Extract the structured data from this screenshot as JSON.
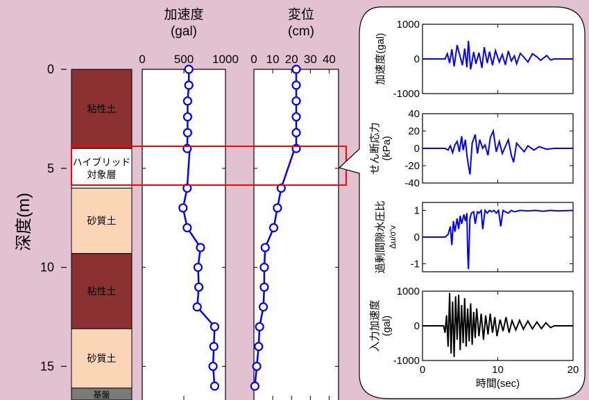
{
  "colors": {
    "background": "#e2c1d0",
    "panel": "#ffffff",
    "clay": "#8b3131",
    "sand": "#fbd6b6",
    "bedrock": "#7a7a7a",
    "series_blue": "#0000ff",
    "series_black": "#000000",
    "highlight": "#ff0000"
  },
  "depth_axis": {
    "label": "深度(m)",
    "ticks": [
      "0",
      "5",
      "10",
      "15"
    ],
    "tick_values": [
      0,
      5,
      10,
      15
    ],
    "range": [
      0,
      16.7
    ]
  },
  "soil_column": {
    "layers": [
      {
        "label": "粘性土",
        "top": 0,
        "bottom": 4.0,
        "type": "clay"
      },
      {
        "label": "ハイブリッド\n対象層",
        "top": 4.0,
        "bottom": 6.0,
        "type": "target"
      },
      {
        "label": "砂質土",
        "top": 6.0,
        "bottom": 9.3,
        "type": "sand"
      },
      {
        "label": "粘性土",
        "top": 9.3,
        "bottom": 13.1,
        "type": "clay"
      },
      {
        "label": "砂質土",
        "top": 13.1,
        "bottom": 16.1,
        "type": "sand"
      },
      {
        "label": "基盤",
        "top": 16.1,
        "bottom": 16.7,
        "type": "bedrock"
      }
    ]
  },
  "chart_data": [
    {
      "type": "line",
      "title": "加速度\n(gal)",
      "x_ticks": [
        "0",
        "500",
        "1000"
      ],
      "xlim": [
        0,
        1000
      ],
      "series": [
        {
          "x": [
            560,
            560,
            545,
            545,
            545,
            540,
            570,
            540,
            490,
            540,
            700,
            670,
            680,
            660,
            870,
            860,
            850,
            870
          ],
          "y": [
            0,
            0.8,
            1.6,
            2.4,
            3.2,
            4.0,
            4.05,
            6.0,
            7.0,
            8.0,
            9.0,
            10.0,
            11.0,
            12.0,
            13.0,
            14.0,
            15.0,
            16.0
          ]
        }
      ]
    },
    {
      "type": "line",
      "title": "変位\n(cm)",
      "x_ticks": [
        "0",
        "10",
        "20",
        "30",
        "40"
      ],
      "xlim": [
        0,
        45
      ],
      "series": [
        {
          "x": [
            22.5,
            22.5,
            22.5,
            22.5,
            22.5,
            22.5,
            21.5,
            14.5,
            12.5,
            10.5,
            6.0,
            5.5,
            5.5,
            5.0,
            3.0,
            2.5,
            1.5,
            0.5
          ],
          "y": [
            0,
            0.8,
            1.6,
            2.4,
            3.2,
            4.0,
            4.05,
            6.0,
            7.0,
            8.0,
            9.0,
            10.0,
            11.0,
            12.0,
            13.0,
            14.0,
            15.0,
            16.0
          ]
        }
      ]
    },
    {
      "type": "line",
      "ylabel": "加速度(gal)",
      "y_ticks": [
        "1000",
        "0",
        "-1000"
      ],
      "y_tick_values": [
        1000,
        0,
        -1000
      ],
      "ylim": [
        -1000,
        1000
      ],
      "xlim": [
        0,
        20
      ],
      "color": "#0000ff",
      "series": [
        {
          "t": [
            0,
            3.0,
            3.3,
            3.6,
            3.9,
            4.2,
            4.6,
            5.0,
            5.3,
            5.6,
            5.9,
            6.1,
            6.4,
            6.8,
            7.1,
            7.5,
            7.9,
            8.2,
            8.6,
            8.9,
            9.3,
            9.7,
            10.2,
            10.6,
            11.0,
            11.4,
            11.8,
            12.2,
            12.5,
            13.0,
            13.5,
            14.0,
            14.6,
            15.2,
            15.7,
            16.5,
            17.0,
            17.5,
            20
          ],
          "v": [
            0,
            0,
            150,
            -120,
            280,
            -220,
            400,
            60,
            -180,
            300,
            -240,
            520,
            -300,
            200,
            -140,
            180,
            -260,
            340,
            -120,
            210,
            -180,
            240,
            -90,
            130,
            -170,
            230,
            -60,
            90,
            -140,
            160,
            40,
            -90,
            150,
            60,
            -40,
            100,
            -30,
            0,
            0
          ]
        }
      ]
    },
    {
      "type": "line",
      "ylabel": "せん断応力\n(kPa)",
      "y_ticks": [
        "40",
        "20",
        "0",
        "-20",
        "-40"
      ],
      "y_tick_values": [
        40,
        20,
        0,
        -20,
        -40
      ],
      "ylim": [
        -40,
        40
      ],
      "xlim": [
        0,
        20
      ],
      "color": "#0000ff",
      "series": [
        {
          "t": [
            0,
            3.0,
            3.4,
            3.7,
            4.0,
            4.3,
            4.6,
            4.9,
            5.2,
            5.4,
            5.7,
            5.9,
            6.1,
            6.3,
            6.6,
            7.0,
            7.3,
            7.6,
            8.0,
            8.3,
            8.7,
            9.0,
            9.4,
            9.8,
            10.2,
            10.6,
            11.0,
            11.4,
            11.8,
            12.1,
            12.5,
            12.9,
            13.5,
            14.0,
            14.8,
            15.5,
            16.5,
            17.5,
            20
          ],
          "v": [
            0,
            0,
            -2,
            3,
            -5,
            4,
            8,
            -4,
            14,
            -2,
            10,
            -8,
            -20,
            -30,
            6,
            16,
            -6,
            10,
            0,
            4,
            -8,
            12,
            20,
            -4,
            8,
            -6,
            2,
            10,
            -8,
            -16,
            6,
            2,
            -4,
            3,
            -2,
            2,
            -1,
            0,
            0
          ]
        }
      ]
    },
    {
      "type": "line",
      "ylabel": "過剰間隙水圧比",
      "ylabel2": "Δu/σ'v",
      "y_ticks": [
        "1",
        "0",
        "-1"
      ],
      "y_tick_values": [
        1,
        0,
        -1
      ],
      "ylim": [
        -1.3,
        1.3
      ],
      "xlim": [
        0,
        20
      ],
      "color": "#0000ff",
      "series": [
        {
          "t": [
            0,
            3.0,
            3.4,
            3.7,
            3.9,
            4.1,
            4.3,
            4.6,
            4.8,
            5.0,
            5.2,
            5.5,
            5.7,
            5.9,
            6.0,
            6.1,
            6.3,
            6.5,
            6.8,
            7.0,
            7.3,
            7.5,
            7.8,
            8.0,
            8.3,
            8.6,
            8.9,
            9.2,
            9.5,
            9.8,
            10.1,
            10.4,
            10.7,
            11.0,
            11.4,
            11.8,
            12.2,
            13.0,
            14.0,
            15.0,
            16.0,
            17.0,
            18.0,
            20
          ],
          "v": [
            0,
            0,
            0.1,
            0.4,
            -0.3,
            0.6,
            0.2,
            0.7,
            0.3,
            0.8,
            0.5,
            0.85,
            0.6,
            0.9,
            -0.6,
            -1.2,
            0.7,
            0.9,
            0.95,
            0.5,
            0.95,
            0.9,
            1.0,
            0.3,
            1.0,
            0.9,
            1.0,
            0.95,
            1.0,
            0.9,
            1.0,
            0.4,
            1.0,
            0.95,
            0.9,
            1.0,
            0.95,
            1.0,
            0.98,
            1.0,
            0.97,
            1.0,
            0.98,
            1.0
          ]
        }
      ]
    },
    {
      "type": "line",
      "ylabel": "入力加速度\n(gal)",
      "y_ticks": [
        "1000",
        "0",
        "-1000"
      ],
      "y_tick_values": [
        1000,
        0,
        -1000
      ],
      "ylim": [
        -1000,
        1000
      ],
      "x_ticks": [
        "0",
        "10",
        "20"
      ],
      "x_tick_values": [
        0,
        10,
        20
      ],
      "xlim": [
        0,
        20
      ],
      "xlabel": "時間(sec)",
      "color": "#000000",
      "series": [
        {
          "t": [
            0,
            2.8,
            3.0,
            3.2,
            3.4,
            3.6,
            3.8,
            4.0,
            4.2,
            4.4,
            4.6,
            4.8,
            5.0,
            5.2,
            5.4,
            5.6,
            5.8,
            6.0,
            6.2,
            6.4,
            6.6,
            6.8,
            7.0,
            7.2,
            7.5,
            7.8,
            8.1,
            8.4,
            8.7,
            9.0,
            9.3,
            9.6,
            9.9,
            10.3,
            10.7,
            11.1,
            11.5,
            11.9,
            12.4,
            12.9,
            13.4,
            14.0,
            14.6,
            15.2,
            15.8,
            16.4,
            17.0,
            17.5,
            20
          ],
          "v": [
            0,
            0,
            -200,
            300,
            -600,
            950,
            -800,
            700,
            -900,
            850,
            -400,
            900,
            -700,
            600,
            -500,
            800,
            -600,
            500,
            -450,
            650,
            -550,
            400,
            -350,
            500,
            -300,
            350,
            -400,
            300,
            -250,
            350,
            -200,
            250,
            -300,
            180,
            -150,
            250,
            -200,
            150,
            -120,
            160,
            -100,
            140,
            -90,
            110,
            -80,
            90,
            -50,
            0,
            0
          ]
        }
      ]
    }
  ]
}
